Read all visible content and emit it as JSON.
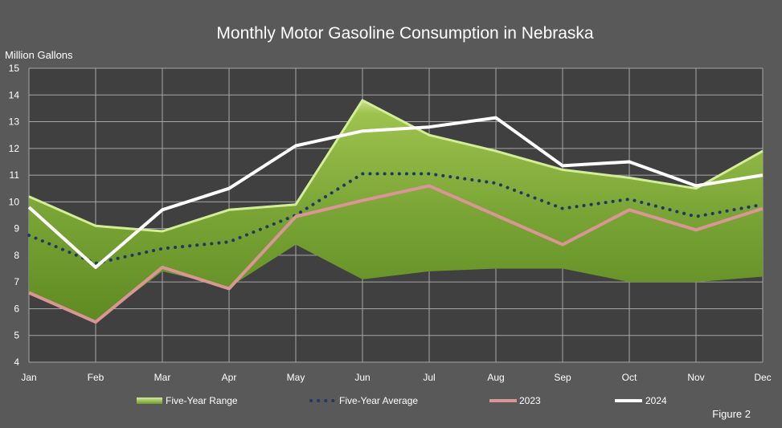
{
  "chart_data": {
    "type": "area",
    "title": "Monthly Motor Gasoline Consumption in Nebraska",
    "ylabel": "Million Gallons",
    "xlabel": "",
    "categories": [
      "Jan",
      "Feb",
      "Mar",
      "Apr",
      "May",
      "Jun",
      "Jul",
      "Aug",
      "Sep",
      "Oct",
      "Nov",
      "Dec"
    ],
    "ylim": [
      4,
      15
    ],
    "yticks": [
      "4",
      "5",
      "6",
      "7",
      "8",
      "9",
      "10",
      "11",
      "12",
      "13",
      "14",
      "15"
    ],
    "grid": true,
    "legend_position": "bottom",
    "series": [
      {
        "name": "Five-Year Range",
        "kind": "range",
        "upper": [
          10.2,
          9.1,
          8.9,
          9.7,
          9.9,
          13.8,
          12.5,
          11.9,
          11.2,
          10.9,
          10.5,
          11.9
        ],
        "lower": [
          6.6,
          5.5,
          7.4,
          6.8,
          8.4,
          7.1,
          7.4,
          7.5,
          7.5,
          7.0,
          7.0,
          7.2
        ],
        "color": "#6e9a2c"
      },
      {
        "name": "Five-Year Average",
        "kind": "line",
        "style": "dotted",
        "values": [
          8.75,
          7.7,
          8.25,
          8.5,
          9.5,
          11.05,
          11.05,
          10.7,
          9.75,
          10.1,
          9.45,
          9.9
        ],
        "color": "#1f3864"
      },
      {
        "name": "2023",
        "kind": "line",
        "style": "solid",
        "values": [
          6.6,
          5.5,
          7.55,
          6.75,
          9.45,
          10.05,
          10.6,
          9.5,
          8.4,
          9.7,
          8.95,
          9.75
        ],
        "color": "#d99694"
      },
      {
        "name": "2024",
        "kind": "line",
        "style": "solid",
        "values": [
          9.8,
          7.55,
          9.7,
          10.5,
          12.1,
          12.65,
          12.8,
          13.15,
          11.35,
          11.5,
          10.6,
          11.0
        ],
        "color": "#ffffff"
      }
    ]
  },
  "figure_note": "Figure 2"
}
